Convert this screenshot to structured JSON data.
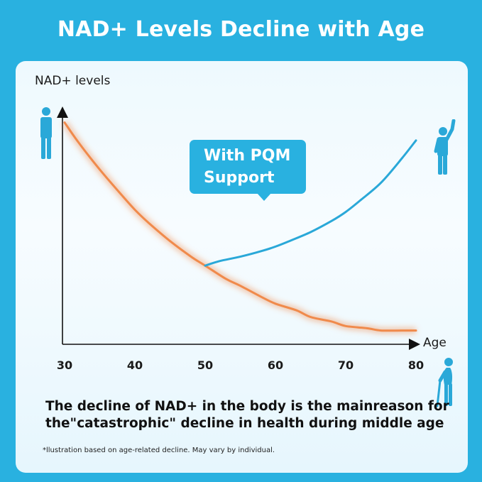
{
  "header": {
    "title": "NAD+ Levels Decline with Age"
  },
  "callout": {
    "line1": "With PQM",
    "line2": "Support"
  },
  "caption": {
    "line1": "The decline of NAD+ in the body is the mainreason for",
    "line2": "the\"catastrophic\" decline in health during middle age"
  },
  "footnote": "*llustration based on age-related decline. May vary by individual.",
  "icons": [
    "standing-person-icon",
    "waving-person-icon",
    "elderly-person-with-cane-icon"
  ],
  "colors": {
    "background": "#29b1e0",
    "decline_line": "#f08a4b",
    "support_line": "#2aa8d8",
    "axis": "#111111"
  },
  "chart_data": {
    "type": "line",
    "title": "NAD+ Levels Decline with Age",
    "xlabel": "Age",
    "ylabel": "NAD+ levels",
    "x_ticks": [
      30,
      40,
      50,
      60,
      70,
      80
    ],
    "xlim": [
      30,
      80
    ],
    "ylim": [
      0,
      100
    ],
    "grid": false,
    "series": [
      {
        "key": "decline",
        "color": "#f08a4b",
        "x": [
          30,
          32,
          35,
          38,
          40,
          42,
          45,
          48,
          50,
          53,
          55,
          58,
          60,
          63,
          65,
          68,
          70,
          73,
          75,
          78,
          80
        ],
        "values": [
          96,
          87,
          75,
          64,
          57,
          51,
          43,
          36,
          32,
          26,
          23,
          18,
          15,
          12,
          9,
          7,
          5,
          4,
          3,
          3,
          3
        ]
      },
      {
        "key": "with-support",
        "color": "#2aa8d8",
        "x": [
          50,
          52,
          55,
          58,
          60,
          62,
          65,
          68,
          70,
          72,
          75,
          78,
          80
        ],
        "values": [
          32,
          34,
          36,
          38.5,
          40.5,
          43,
          47,
          52,
          56,
          61,
          69,
          80,
          88
        ]
      }
    ]
  }
}
